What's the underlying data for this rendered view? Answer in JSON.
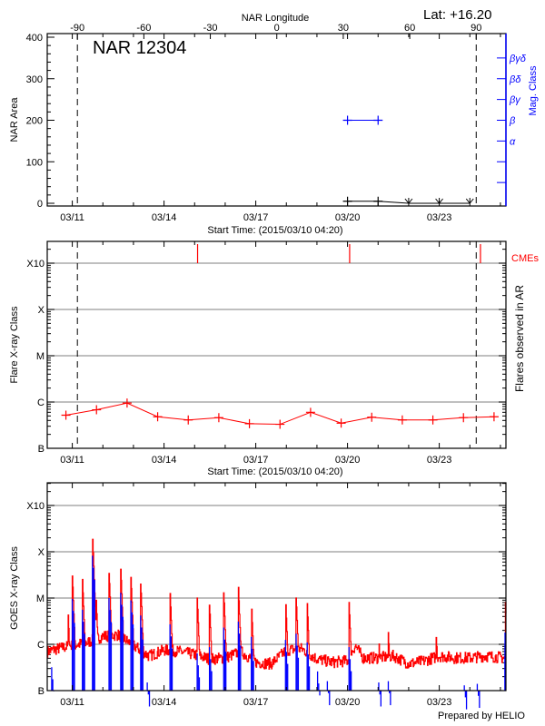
{
  "page": {
    "lat_label": "Lat: +16.20",
    "footer": "Prepared by HELIO"
  },
  "colors": {
    "axis": "#000000",
    "grid": "#999999",
    "flare": "#ff0000",
    "cme": "#ff0000",
    "mag_class": "#0000ff",
    "goes_long": "#ff0000",
    "goes_short": "#0000ff"
  },
  "chart_data": [
    {
      "type": "line",
      "title": "NAR 12304",
      "xlabel": "Start Time: (2015/03/10 04:20)",
      "xlim": [
        "03/10 04:20",
        "03/25 04:20"
      ],
      "x_tick_labels": [
        "03/11",
        "03/14",
        "03/17",
        "03/20",
        "03/23"
      ],
      "top_axis_label": "NAR Longitude",
      "top_ticks": [
        -90,
        -60,
        -30,
        0,
        30,
        60,
        90
      ],
      "limb_crossings": [
        {
          "lon": -90,
          "t": "03/11 04:00"
        },
        {
          "lon": 90,
          "t": "03/24 05:00"
        }
      ],
      "ylabel": "NAR Area",
      "ylim": [
        0,
        400
      ],
      "yticks": [
        0,
        100,
        200,
        300,
        400
      ],
      "right_axis_label": "Mag. Class",
      "mag_class_ticks": [
        {
          "label": "",
          "level": 50
        },
        {
          "label": "",
          "level": 100
        },
        {
          "label": "α",
          "level": 150
        },
        {
          "label": "β",
          "level": 200
        },
        {
          "label": "βγ",
          "level": 250
        },
        {
          "label": "βδ",
          "level": 300
        },
        {
          "label": "βγδ",
          "level": 350
        }
      ],
      "area_series": [
        {
          "t": "03/20 00:00",
          "v": 5
        },
        {
          "t": "03/21 00:00",
          "v": 5
        },
        {
          "t": "03/22 00:00",
          "v": 0
        },
        {
          "t": "03/23 00:00",
          "v": 0
        },
        {
          "t": "03/24 00:00",
          "v": 0
        }
      ],
      "mag_class_series": [
        {
          "t": "03/20 00:00",
          "class": "β"
        },
        {
          "t": "03/21 00:00",
          "class": "β"
        }
      ]
    },
    {
      "type": "line",
      "xlabel": "Start Time: (2015/03/10 04:20)",
      "xlim": [
        "03/10 04:20",
        "03/25 04:20"
      ],
      "x_tick_labels": [
        "03/11",
        "03/14",
        "03/17",
        "03/20",
        "03/23"
      ],
      "ylabel": "Flare X-ray Class",
      "right_axis_label": "Flares observed in AR",
      "yscale": "log",
      "yticks": [
        "B",
        "C",
        "M",
        "X",
        "X10"
      ],
      "grid": true,
      "cme_label": "CMEs",
      "cmes": [
        "03/15 02:20",
        "03/20 01:40",
        "03/24 08:20"
      ],
      "limb_crossings": [
        "03/11 04:00",
        "03/24 05:00"
      ],
      "flares": [
        {
          "t": "03/10 19:00",
          "class": "B5.2"
        },
        {
          "t": "03/11 19:00",
          "class": "B6.8"
        },
        {
          "t": "03/12 19:00",
          "class": "B9.5"
        },
        {
          "t": "03/13 19:00",
          "class": "B4.8"
        },
        {
          "t": "03/14 19:00",
          "class": "B4.1"
        },
        {
          "t": "03/15 19:00",
          "class": "B4.6"
        },
        {
          "t": "03/16 19:00",
          "class": "B3.4"
        },
        {
          "t": "03/17 19:00",
          "class": "B3.3"
        },
        {
          "t": "03/18 19:00",
          "class": "B6.0"
        },
        {
          "t": "03/19 19:00",
          "class": "B3.5"
        },
        {
          "t": "03/20 19:00",
          "class": "B4.7"
        },
        {
          "t": "03/21 19:00",
          "class": "B4.1"
        },
        {
          "t": "03/22 19:00",
          "class": "B4.1"
        },
        {
          "t": "03/23 19:00",
          "class": "B4.6"
        },
        {
          "t": "03/24 19:00",
          "class": "B4.8"
        }
      ]
    },
    {
      "type": "line",
      "xlim": [
        "03/10 04:20",
        "03/25 04:20"
      ],
      "x_tick_labels": [
        "03/11",
        "03/14",
        "03/17",
        "03/20",
        "03/23"
      ],
      "ylabel": "GOES X-ray Class",
      "yscale": "log",
      "yticks": [
        "B",
        "C",
        "M",
        "X",
        "X10"
      ],
      "grid": true,
      "long_baseline": [
        [
          "03/10 04:20",
          7e-07
        ],
        [
          "03/10 12:00",
          8e-07
        ],
        [
          "03/11 00:00",
          9.4e-07
        ],
        [
          "03/11 12:00",
          1.1e-06
        ],
        [
          "03/12 00:00",
          1.5e-06
        ],
        [
          "03/12 12:00",
          1.6e-06
        ],
        [
          "03/13 00:00",
          9.4e-07
        ],
        [
          "03/13 12:00",
          5.6e-07
        ],
        [
          "03/14 00:00",
          7.5e-07
        ],
        [
          "03/14 12:00",
          7e-07
        ],
        [
          "03/15 00:00",
          6e-07
        ],
        [
          "03/15 12:00",
          4.8e-07
        ],
        [
          "03/16 00:00",
          5.1e-07
        ],
        [
          "03/16 12:00",
          7e-07
        ],
        [
          "03/17 00:00",
          4.1e-07
        ],
        [
          "03/17 12:00",
          3.8e-07
        ],
        [
          "03/18 00:00",
          7.5e-07
        ],
        [
          "03/18 12:00",
          8e-07
        ],
        [
          "03/19 00:00",
          4.8e-07
        ],
        [
          "03/19 12:00",
          4.1e-07
        ],
        [
          "03/20 00:00",
          4.4e-07
        ],
        [
          "03/20 06:00",
          9.4e-07
        ],
        [
          "03/20 12:00",
          5.1e-07
        ],
        [
          "03/21 00:00",
          5.1e-07
        ],
        [
          "03/21 12:00",
          5.6e-07
        ],
        [
          "03/22 00:00",
          3.8e-07
        ],
        [
          "03/22 12:00",
          4.4e-07
        ],
        [
          "03/23 00:00",
          5.6e-07
        ],
        [
          "03/23 12:00",
          5.1e-07
        ],
        [
          "03/24 00:00",
          5.1e-07
        ],
        [
          "03/24 12:00",
          5.6e-07
        ],
        [
          "03/25 04:20",
          5.1e-07
        ]
      ],
      "long_peaks": [
        [
          "03/10 20:40",
          4.8e-06
        ],
        [
          "03/11 00:00",
          3e-05
        ],
        [
          "03/11 07:55",
          2.6e-05
        ],
        [
          "03/11 15:50",
          0.00022
        ],
        [
          "03/11 18:40",
          1e-05
        ],
        [
          "03/12 04:50",
          3.4e-05
        ],
        [
          "03/12 14:00",
          4.2e-05
        ],
        [
          "03/12 22:00",
          2.8e-05
        ],
        [
          "03/13 05:40",
          2e-05
        ],
        [
          "03/14 04:40",
          1.4e-05
        ],
        [
          "03/15 02:00",
          1e-05
        ],
        [
          "03/15 11:40",
          7e-06
        ],
        [
          "03/15 22:50",
          1.3e-05
        ],
        [
          "03/16 10:20",
          1.7e-05
        ],
        [
          "03/16 20:30",
          8.5e-06
        ],
        [
          "03/17 23:20",
          1e-05
        ],
        [
          "03/18 07:40",
          1e-05
        ],
        [
          "03/18 16:20",
          7.6e-06
        ],
        [
          "03/20 01:10",
          8e-06
        ],
        [
          "03/21 00:30",
          1.5e-06
        ],
        [
          "03/21 08:00",
          1.8e-06
        ],
        [
          "03/22 21:40",
          1.4e-06
        ],
        [
          "03/25 04:00",
          8e-06
        ]
      ],
      "short_peaks": [
        [
          "03/10 07:50",
          3.2e-07
        ],
        [
          "03/11 00:00",
          9.6e-06
        ],
        [
          "03/11 07:55",
          5.6e-06
        ],
        [
          "03/11 15:50",
          8.2e-05
        ],
        [
          "03/12 04:50",
          1e-05
        ],
        [
          "03/12 14:00",
          1.3e-05
        ],
        [
          "03/12 22:00",
          8.9e-06
        ],
        [
          "03/13 05:40",
          4.2e-06
        ],
        [
          "03/13 10:50",
          1.5e-07
        ],
        [
          "03/14 04:40",
          2.7e-06
        ],
        [
          "03/15 02:00",
          6.4e-07
        ],
        [
          "03/15 11:40",
          8.7e-07
        ],
        [
          "03/15 22:50",
          2.3e-06
        ],
        [
          "03/16 10:20",
          3.1e-06
        ],
        [
          "03/16 20:30",
          1.45e-06
        ],
        [
          "03/17 23:20",
          1.25e-06
        ],
        [
          "03/18 07:40",
          1.7e-06
        ],
        [
          "03/18 16:20",
          1.1e-06
        ],
        [
          "03/19 00:30",
          2.6e-07
        ],
        [
          "03/19 08:10",
          1.6e-07
        ],
        [
          "03/20 01:10",
          8.7e-07
        ],
        [
          "03/21 00:30",
          1.5e-07
        ],
        [
          "03/21 08:00",
          1.6e-07
        ],
        [
          "03/23 19:40",
          1.3e-07
        ],
        [
          "03/24 05:50",
          1.4e-07
        ],
        [
          "03/25 04:00",
          1.8e-06
        ]
      ]
    }
  ]
}
